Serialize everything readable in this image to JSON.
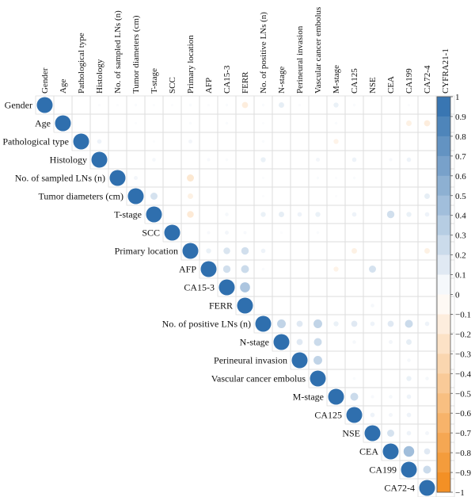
{
  "chart_data": {
    "type": "heatmap",
    "subtype": "upper-triangular correlation matrix (circle glyphs)",
    "variables": [
      "Gender",
      "Age",
      "Pathological type",
      "Histology",
      "No. of sampled LNs (n)",
      "Tumor diameters (cm)",
      "T-stage",
      "SCC",
      "Primary location",
      "AFP",
      "CA15-3",
      "FERR",
      "No. of positive LNs (n)",
      "N-stage",
      "Perineural invasion",
      "Vascular cancer embolus",
      "M-stage",
      "CA125",
      "NSE",
      "CEA",
      "CA199",
      "CA72-4",
      "CYFRA21-1"
    ],
    "correlations": [
      {
        "row": 0,
        "col": 0,
        "r": 1
      },
      {
        "row": 0,
        "col": 3,
        "r": 0.02
      },
      {
        "row": 0,
        "col": 4,
        "r": 0.02
      },
      {
        "row": 0,
        "col": 5,
        "r": 0.03
      },
      {
        "row": 0,
        "col": 6,
        "r": 0.02
      },
      {
        "row": 0,
        "col": 7,
        "r": 0.02
      },
      {
        "row": 0,
        "col": 8,
        "r": 0.03
      },
      {
        "row": 0,
        "col": 9,
        "r": 0.02
      },
      {
        "row": 0,
        "col": 10,
        "r": 0.03
      },
      {
        "row": 0,
        "col": 11,
        "r": -0.15
      },
      {
        "row": 0,
        "col": 12,
        "r": 0.03
      },
      {
        "row": 0,
        "col": 13,
        "r": 0.12
      },
      {
        "row": 0,
        "col": 14,
        "r": 0.02
      },
      {
        "row": 0,
        "col": 16,
        "r": 0.1
      },
      {
        "row": 0,
        "col": 17,
        "r": 0.03
      },
      {
        "row": 0,
        "col": 20,
        "r": 0.02
      },
      {
        "row": 1,
        "col": 1,
        "r": 1
      },
      {
        "row": 1,
        "col": 5,
        "r": 0.02
      },
      {
        "row": 1,
        "col": 8,
        "r": 0.03
      },
      {
        "row": 1,
        "col": 10,
        "r": 0.03
      },
      {
        "row": 1,
        "col": 12,
        "r": 0.02
      },
      {
        "row": 1,
        "col": 16,
        "r": 0.03
      },
      {
        "row": 1,
        "col": 20,
        "r": -0.12
      },
      {
        "row": 1,
        "col": 21,
        "r": -0.15
      },
      {
        "row": 2,
        "col": 2,
        "r": 1
      },
      {
        "row": 2,
        "col": 3,
        "r": 0.08
      },
      {
        "row": 2,
        "col": 6,
        "r": 0.02
      },
      {
        "row": 2,
        "col": 8,
        "r": 0.06
      },
      {
        "row": 2,
        "col": 12,
        "r": 0.03
      },
      {
        "row": 2,
        "col": 16,
        "r": -0.1
      },
      {
        "row": 3,
        "col": 3,
        "r": 1
      },
      {
        "row": 3,
        "col": 6,
        "r": 0.05
      },
      {
        "row": 3,
        "col": 9,
        "r": 0.04
      },
      {
        "row": 3,
        "col": 10,
        "r": 0.03
      },
      {
        "row": 3,
        "col": 12,
        "r": 0.1
      },
      {
        "row": 3,
        "col": 15,
        "r": 0.06
      },
      {
        "row": 3,
        "col": 17,
        "r": 0.08
      },
      {
        "row": 3,
        "col": 19,
        "r": 0.04
      },
      {
        "row": 3,
        "col": 20,
        "r": 0.08
      },
      {
        "row": 4,
        "col": 4,
        "r": 1
      },
      {
        "row": 4,
        "col": 5,
        "r": 0.06
      },
      {
        "row": 4,
        "col": 8,
        "r": -0.2
      },
      {
        "row": 4,
        "col": 12,
        "r": 0.02
      },
      {
        "row": 4,
        "col": 15,
        "r": 0.03
      },
      {
        "row": 4,
        "col": 16,
        "r": 0.02
      },
      {
        "row": 4,
        "col": 17,
        "r": 0.03
      },
      {
        "row": 5,
        "col": 5,
        "r": 1
      },
      {
        "row": 5,
        "col": 6,
        "r": 0.2
      },
      {
        "row": 5,
        "col": 8,
        "r": -0.12
      },
      {
        "row": 5,
        "col": 12,
        "r": 0.02
      },
      {
        "row": 5,
        "col": 16,
        "r": 0.02
      },
      {
        "row": 5,
        "col": 21,
        "r": 0.12
      },
      {
        "row": 5,
        "col": 22,
        "r": 0.12
      },
      {
        "row": 6,
        "col": 6,
        "r": 1
      },
      {
        "row": 6,
        "col": 8,
        "r": -0.18
      },
      {
        "row": 6,
        "col": 10,
        "r": 0.05
      },
      {
        "row": 6,
        "col": 12,
        "r": 0.1
      },
      {
        "row": 6,
        "col": 13,
        "r": 0.12
      },
      {
        "row": 6,
        "col": 14,
        "r": 0.08
      },
      {
        "row": 6,
        "col": 15,
        "r": 0.1
      },
      {
        "row": 6,
        "col": 17,
        "r": 0.08
      },
      {
        "row": 6,
        "col": 19,
        "r": 0.22
      },
      {
        "row": 6,
        "col": 20,
        "r": 0.1
      },
      {
        "row": 6,
        "col": 21,
        "r": 0.08
      },
      {
        "row": 6,
        "col": 22,
        "r": 0.12
      },
      {
        "row": 7,
        "col": 7,
        "r": 1
      },
      {
        "row": 7,
        "col": 9,
        "r": 0.04
      },
      {
        "row": 7,
        "col": 10,
        "r": 0.06
      },
      {
        "row": 7,
        "col": 11,
        "r": 0.04
      },
      {
        "row": 7,
        "col": 13,
        "r": 0.02
      },
      {
        "row": 7,
        "col": 15,
        "r": 0.03
      },
      {
        "row": 8,
        "col": 8,
        "r": 1
      },
      {
        "row": 8,
        "col": 9,
        "r": 0.1
      },
      {
        "row": 8,
        "col": 10,
        "r": 0.18
      },
      {
        "row": 8,
        "col": 11,
        "r": 0.22
      },
      {
        "row": 8,
        "col": 12,
        "r": 0.08
      },
      {
        "row": 8,
        "col": 17,
        "r": -0.12
      },
      {
        "row": 8,
        "col": 21,
        "r": -0.12
      },
      {
        "row": 9,
        "col": 9,
        "r": 1
      },
      {
        "row": 9,
        "col": 10,
        "r": 0.22
      },
      {
        "row": 9,
        "col": 11,
        "r": 0.25
      },
      {
        "row": 9,
        "col": 12,
        "r": 0.03
      },
      {
        "row": 9,
        "col": 16,
        "r": -0.1
      },
      {
        "row": 9,
        "col": 18,
        "r": 0.2
      },
      {
        "row": 9,
        "col": 22,
        "r": 0.18
      },
      {
        "row": 10,
        "col": 10,
        "r": 1
      },
      {
        "row": 10,
        "col": 11,
        "r": 0.4
      },
      {
        "row": 10,
        "col": 22,
        "r": 0.2
      },
      {
        "row": 11,
        "col": 11,
        "r": 1
      },
      {
        "row": 11,
        "col": 18,
        "r": 0.05
      },
      {
        "row": 11,
        "col": 22,
        "r": 0.18
      },
      {
        "row": 12,
        "col": 12,
        "r": 1
      },
      {
        "row": 12,
        "col": 13,
        "r": 0.3
      },
      {
        "row": 12,
        "col": 14,
        "r": 0.15
      },
      {
        "row": 12,
        "col": 15,
        "r": 0.3
      },
      {
        "row": 12,
        "col": 16,
        "r": 0.1
      },
      {
        "row": 12,
        "col": 17,
        "r": 0.15
      },
      {
        "row": 12,
        "col": 18,
        "r": 0.08
      },
      {
        "row": 12,
        "col": 19,
        "r": 0.15
      },
      {
        "row": 12,
        "col": 20,
        "r": 0.25
      },
      {
        "row": 12,
        "col": 21,
        "r": 0.08
      },
      {
        "row": 12,
        "col": 22,
        "r": 0.1
      },
      {
        "row": 13,
        "col": 13,
        "r": 1
      },
      {
        "row": 13,
        "col": 14,
        "r": 0.15
      },
      {
        "row": 13,
        "col": 15,
        "r": 0.25
      },
      {
        "row": 13,
        "col": 17,
        "r": 0.05
      },
      {
        "row": 13,
        "col": 19,
        "r": 0.06
      },
      {
        "row": 13,
        "col": 20,
        "r": 0.12
      },
      {
        "row": 14,
        "col": 14,
        "r": 1
      },
      {
        "row": 14,
        "col": 15,
        "r": 0.3
      },
      {
        "row": 14,
        "col": 20,
        "r": 0.05
      },
      {
        "row": 15,
        "col": 15,
        "r": 1
      },
      {
        "row": 15,
        "col": 17,
        "r": 0.03
      },
      {
        "row": 15,
        "col": 20,
        "r": 0.1
      },
      {
        "row": 15,
        "col": 21,
        "r": 0.05
      },
      {
        "row": 16,
        "col": 16,
        "r": 1
      },
      {
        "row": 16,
        "col": 17,
        "r": 0.25
      },
      {
        "row": 16,
        "col": 18,
        "r": 0.04
      },
      {
        "row": 16,
        "col": 19,
        "r": 0.05
      },
      {
        "row": 16,
        "col": 20,
        "r": 0.08
      },
      {
        "row": 17,
        "col": 17,
        "r": 1
      },
      {
        "row": 17,
        "col": 18,
        "r": 0.08
      },
      {
        "row": 17,
        "col": 19,
        "r": 0.06
      },
      {
        "row": 17,
        "col": 20,
        "r": 0.08
      },
      {
        "row": 17,
        "col": 22,
        "r": 0.05
      },
      {
        "row": 18,
        "col": 18,
        "r": 1
      },
      {
        "row": 18,
        "col": 19,
        "r": 0.2
      },
      {
        "row": 18,
        "col": 20,
        "r": 0.08
      },
      {
        "row": 18,
        "col": 21,
        "r": 0.06
      },
      {
        "row": 19,
        "col": 19,
        "r": 1
      },
      {
        "row": 19,
        "col": 20,
        "r": 0.45
      },
      {
        "row": 19,
        "col": 21,
        "r": 0.15
      },
      {
        "row": 19,
        "col": 22,
        "r": 0.1
      },
      {
        "row": 20,
        "col": 20,
        "r": 1
      },
      {
        "row": 20,
        "col": 21,
        "r": 0.25
      },
      {
        "row": 20,
        "col": 22,
        "r": 0.08
      },
      {
        "row": 21,
        "col": 21,
        "r": 1
      },
      {
        "row": 21,
        "col": 22,
        "r": 0.2
      },
      {
        "row": 22,
        "col": 22,
        "r": 1
      }
    ],
    "colorbar": {
      "min": -1,
      "max": 1,
      "step": 0.1,
      "tick_labels": [
        "1",
        "0.9",
        "0.8",
        "0.7",
        "0.6",
        "0.5",
        "0.4",
        "0.3",
        "0.2",
        "0.1",
        "0",
        "−0.1",
        "−0.2",
        "−0.3",
        "−0.4",
        "−0.5",
        "−0.6",
        "−0.7",
        "−0.8",
        "−0.9",
        "−1"
      ],
      "positive_color": "#2f6fae",
      "negative_color": "#f28a1a",
      "neutral_color": "#ffffff"
    },
    "grid": true,
    "legend": "right"
  }
}
